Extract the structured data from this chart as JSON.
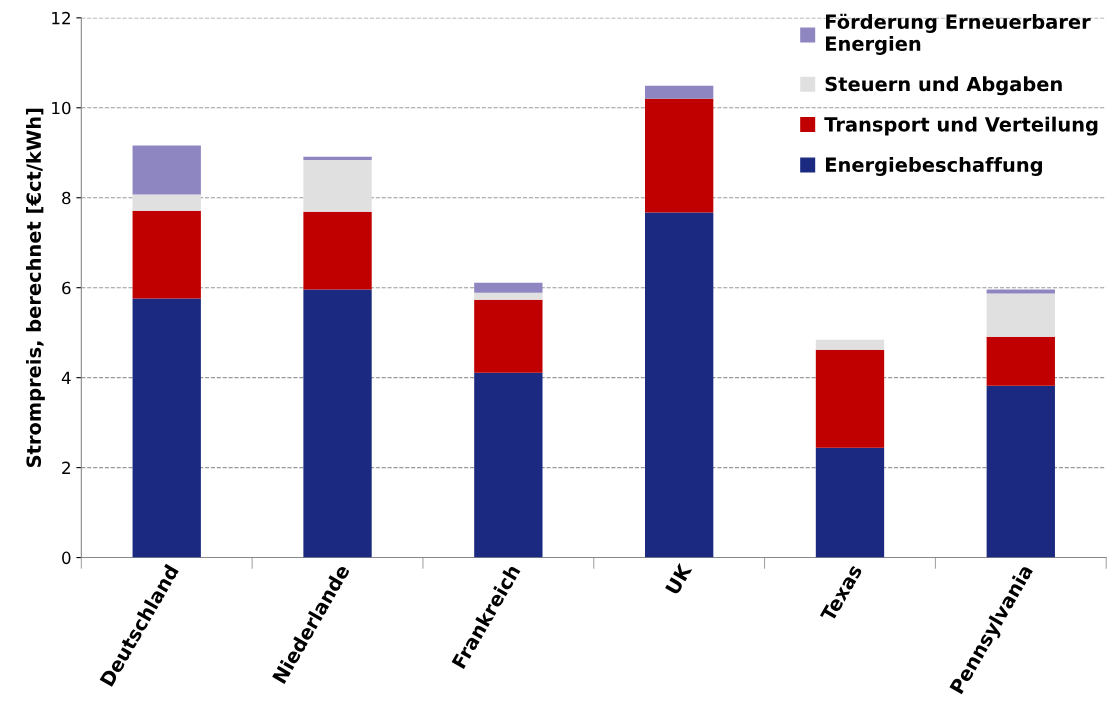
{
  "chart_data": {
    "type": "bar",
    "stacked": true,
    "ylabel": "Strompreis, berechnet [€ct/kWh]",
    "categories": [
      "Deutschland",
      "Niederlande",
      "Frankreich",
      "UK",
      "Texas",
      "Pennsylvania"
    ],
    "series": [
      {
        "name": "Energiebeschaffung",
        "color": "#1b2a80",
        "values": [
          5.76,
          5.96,
          4.11,
          7.67,
          2.44,
          3.82
        ]
      },
      {
        "name": "Transport und Verteilung",
        "color": "#c00000",
        "values": [
          1.95,
          1.73,
          1.62,
          2.53,
          2.18,
          1.09
        ]
      },
      {
        "name": "Steuern und Abgaben",
        "color": "#e0e0e0",
        "values": [
          0.36,
          1.15,
          0.16,
          0,
          0.22,
          0.96
        ]
      },
      {
        "name": "Förderung Erneuerbarer\nEnergien",
        "color": "#8e86c0",
        "values": [
          1.09,
          0.07,
          0.22,
          0.29,
          0,
          0.09
        ]
      }
    ],
    "ylim": [
      0,
      12
    ],
    "yticks": [
      0,
      2,
      4,
      6,
      8,
      10,
      12
    ],
    "grid": "y",
    "legend": "top right"
  }
}
